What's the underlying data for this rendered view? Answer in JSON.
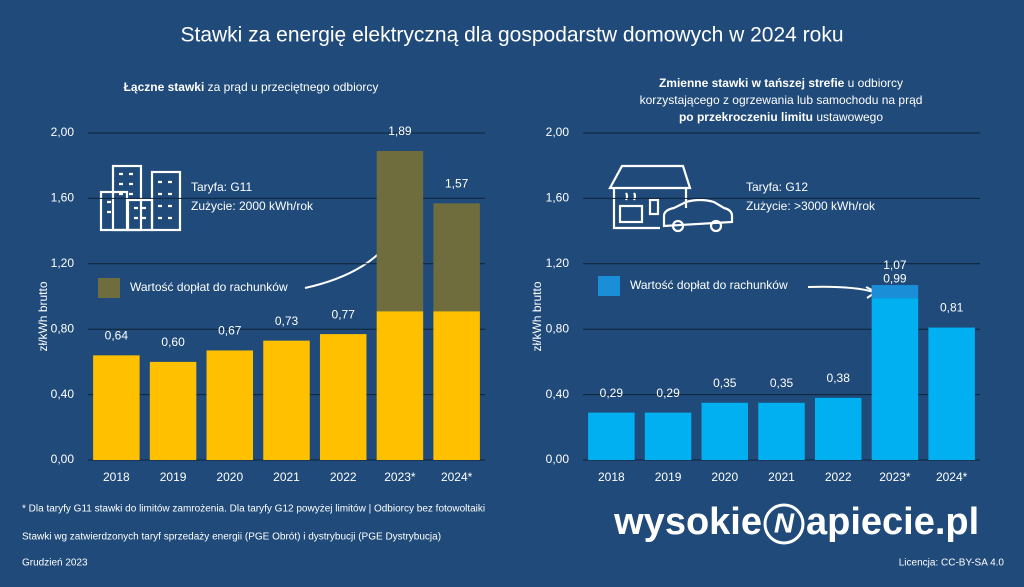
{
  "title": "Stawki za energię elektryczną dla gospodarstw domowych w 2024 roku",
  "chart_data": [
    {
      "type": "bar",
      "stacked": true,
      "subtitle_lines": [
        [
          {
            "text": "Łączne stawki",
            "bold": true
          },
          {
            "text": " za prąd u przeciętnego odbiorcy",
            "bold": false
          }
        ]
      ],
      "annotations": [
        "Taryfa: G11",
        "Zużycie: 2000 kWh/rok"
      ],
      "ylabel": "zł/kWh  brutto",
      "categories": [
        "2018",
        "2019",
        "2020",
        "2021",
        "2022",
        "2023*",
        "2024*"
      ],
      "series": [
        {
          "name": null,
          "color": "#ffc000",
          "values": [
            0.64,
            0.6,
            0.67,
            0.73,
            0.77,
            0.91,
            0.91
          ],
          "value_labels": [
            "0,64",
            "0,60",
            "0,67",
            "0,73",
            "0,77",
            "0,91",
            "0,91"
          ]
        },
        {
          "name": "Wartość dopłat do rachunków",
          "color": "#6f6c3e",
          "values": [
            null,
            null,
            null,
            null,
            null,
            0.98,
            0.66
          ]
        }
      ],
      "totals": [
        null,
        null,
        null,
        null,
        null,
        1.89,
        1.57
      ],
      "total_labels": [
        null,
        null,
        null,
        null,
        null,
        "1,89",
        "1,57"
      ],
      "ylim": [
        0,
        2
      ],
      "yticks": [
        {
          "value": 0,
          "label": "0,00"
        },
        {
          "value": 0.4,
          "label": "0,40"
        },
        {
          "value": 0.8,
          "label": "0,80"
        },
        {
          "value": 1.2,
          "label": "1,20"
        },
        {
          "value": 1.6,
          "label": "1,60"
        },
        {
          "value": 2,
          "label": "2,00"
        }
      ],
      "grid": true
    },
    {
      "type": "bar",
      "stacked": true,
      "subtitle_lines": [
        [
          {
            "text": "Zmienne stawki w tańszej strefie",
            "bold": true
          },
          {
            "text": " u odbiorcy",
            "bold": false
          }
        ],
        [
          {
            "text": "korzystającego z ogrzewania lub samochodu na prąd",
            "bold": false
          }
        ],
        [
          {
            "text": "po przekroczeniu limitu",
            "bold": true
          },
          {
            "text": " ustawowego",
            "bold": false
          }
        ]
      ],
      "annotations": [
        "Taryfa: G12",
        "Zużycie: >3000 kWh/rok"
      ],
      "ylabel": "zł/kWh  brutto",
      "categories": [
        "2018",
        "2019",
        "2020",
        "2021",
        "2022",
        "2023*",
        "2024*"
      ],
      "series": [
        {
          "name": null,
          "color": "#00b0f0",
          "values": [
            0.29,
            0.29,
            0.35,
            0.35,
            0.38,
            0.99,
            0.81
          ],
          "value_labels": [
            "0,29",
            "0,29",
            "0,35",
            "0,35",
            "0,38",
            "0,99",
            "0,81"
          ]
        },
        {
          "name": "Wartość dopłat do rachunków",
          "color": "#1a8fd8",
          "values": [
            null,
            null,
            null,
            null,
            null,
            0.08,
            null
          ]
        }
      ],
      "totals": [
        null,
        null,
        null,
        null,
        null,
        1.07,
        null
      ],
      "total_labels": [
        null,
        null,
        null,
        null,
        null,
        "1,07",
        null
      ],
      "ylim": [
        0,
        2
      ],
      "yticks": [
        {
          "value": 0,
          "label": "0,00"
        },
        {
          "value": 0.4,
          "label": "0,40"
        },
        {
          "value": 0.8,
          "label": "0,80"
        },
        {
          "value": 1.2,
          "label": "1,20"
        },
        {
          "value": 1.6,
          "label": "1,60"
        },
        {
          "value": 2,
          "label": "2,00"
        }
      ],
      "grid": true
    }
  ],
  "footer": {
    "notes": [
      "* Dla taryfy G11 stawki do limitów zamrożenia. Dla taryfy G12 powyżej limitów  | Odbiorcy bez fotowoltaiki",
      "Stawki wg zatwierdzonych taryf sprzedaży energii (PGE Obrót) i dystrybucji (PGE Dystrybucja)",
      "Grudzień  2023"
    ],
    "logo": [
      "wysokie",
      "N",
      "apiecie.pl"
    ],
    "license": "Licencja: CC-BY-SA 4.0"
  }
}
